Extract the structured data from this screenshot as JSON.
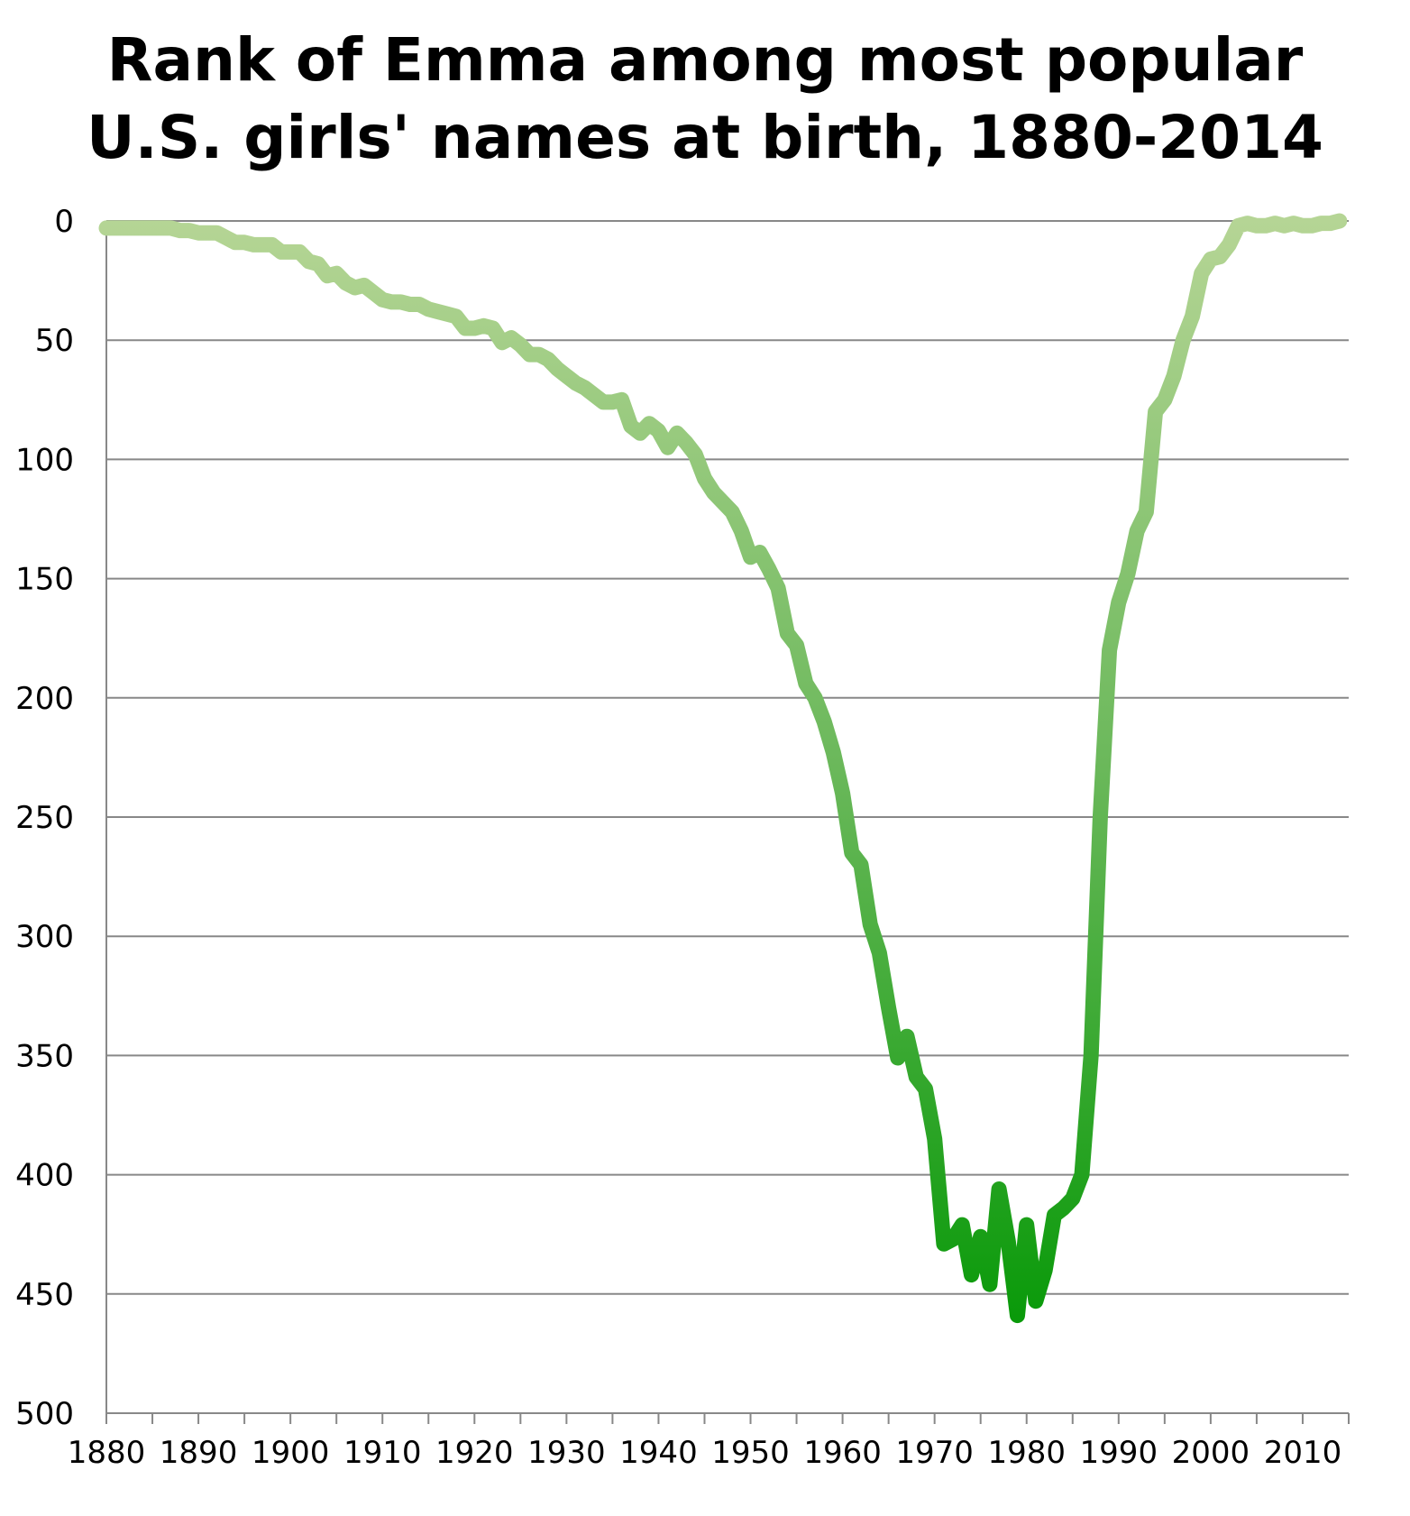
{
  "chart_data": {
    "type": "line",
    "title_lines": [
      "Rank of Emma among most popular",
      "U.S. girls' names at birth, 1880-2014"
    ],
    "xlabel": "",
    "ylabel": "",
    "xlim": [
      1880,
      2015
    ],
    "ylim": [
      0,
      500
    ],
    "y_inverted": true,
    "grid": true,
    "legend": "none",
    "x_tick_labels": [
      "1880",
      "1890",
      "1900",
      "1910",
      "1920",
      "1930",
      "1940",
      "1950",
      "1960",
      "1970",
      "1980",
      "1990",
      "2000",
      "2010"
    ],
    "y_tick_labels": [
      "0",
      "50",
      "100",
      "150",
      "200",
      "250",
      "300",
      "350",
      "400",
      "450",
      "500"
    ],
    "colors": {
      "light": "#b5d595",
      "mid": "#6ab85a",
      "dark": "#0a9a0a",
      "grid": "#888888",
      "axis": "#888888"
    },
    "series": [
      {
        "x": [
          1880,
          1881,
          1882,
          1883,
          1884,
          1885,
          1886,
          1887,
          1888,
          1889,
          1890,
          1891,
          1892,
          1893,
          1894,
          1895,
          1896,
          1897,
          1898,
          1899,
          1900,
          1901,
          1902,
          1903,
          1904,
          1905,
          1906,
          1907,
          1908,
          1909,
          1910,
          1911,
          1912,
          1913,
          1914,
          1915,
          1916,
          1917,
          1918,
          1919,
          1920,
          1921,
          1922,
          1923,
          1924,
          1925,
          1926,
          1927,
          1928,
          1929,
          1930,
          1931,
          1932,
          1933,
          1934,
          1935,
          1936,
          1937,
          1938,
          1939,
          1940,
          1941,
          1942,
          1943,
          1944,
          1945,
          1946,
          1947,
          1948,
          1949,
          1950,
          1951,
          1952,
          1953,
          1954,
          1955,
          1956,
          1957,
          1958,
          1959,
          1960,
          1961,
          1962,
          1963,
          1964,
          1965,
          1966,
          1967,
          1968,
          1969,
          1970,
          1971,
          1972,
          1973,
          1974,
          1975,
          1976,
          1977,
          1978,
          1979,
          1980,
          1981,
          1982,
          1983,
          1984,
          1985,
          1986,
          1987,
          1988,
          1989,
          1990,
          1991,
          1992,
          1993,
          1994,
          1995,
          1996,
          1997,
          1998,
          1999,
          2000,
          2001,
          2002,
          2003,
          2004,
          2005,
          2006,
          2007,
          2008,
          2009,
          2010,
          2011,
          2012,
          2013,
          2014
        ],
        "y": [
          3,
          3,
          3,
          3,
          3,
          3,
          3,
          3,
          4,
          4,
          5,
          5,
          5,
          7,
          9,
          9,
          10,
          10,
          10,
          13,
          13,
          13,
          17,
          18,
          23,
          22,
          26,
          28,
          27,
          30,
          33,
          34,
          34,
          35,
          35,
          37,
          38,
          39,
          40,
          45,
          45,
          44,
          45,
          51,
          49,
          52,
          56,
          56,
          58,
          62,
          65,
          68,
          70,
          73,
          76,
          76,
          75,
          86,
          89,
          85,
          88,
          95,
          89,
          93,
          98,
          108,
          114,
          118,
          122,
          130,
          141,
          139,
          146,
          154,
          173,
          178,
          194,
          200,
          210,
          223,
          240,
          265,
          270,
          295,
          307,
          330,
          351,
          342,
          359,
          364,
          385,
          429,
          427,
          421,
          442,
          426,
          446,
          406,
          428,
          459,
          421,
          453,
          440,
          417,
          414,
          410,
          400,
          350,
          250,
          180,
          160,
          148,
          130,
          122,
          80,
          75,
          65,
          50,
          40,
          22,
          16,
          15,
          10,
          2,
          1,
          2,
          2,
          1,
          2,
          1,
          2,
          2,
          1,
          1,
          0
        ]
      }
    ]
  }
}
